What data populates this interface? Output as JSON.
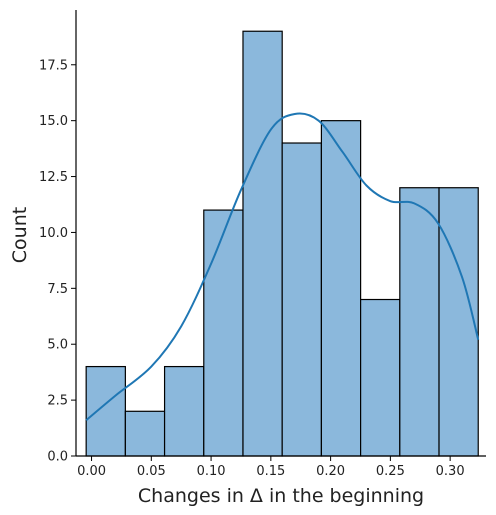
{
  "chart_data": {
    "type": "bar",
    "subtype": "histogram-with-kde",
    "xlabel": "Changes in Δ in the beginning",
    "ylabel": "Count",
    "xlim": [
      -0.013,
      0.33
    ],
    "ylim": [
      0,
      19.95
    ],
    "x_ticks": [
      0.0,
      0.05,
      0.1,
      0.15,
      0.2,
      0.25,
      0.3
    ],
    "x_tick_labels": [
      "0.00",
      "0.05",
      "0.10",
      "0.15",
      "0.20",
      "0.25",
      "0.30"
    ],
    "y_ticks": [
      0,
      2.5,
      5,
      7.5,
      10,
      12.5,
      15,
      17.5
    ],
    "y_tick_labels": [
      "0.0",
      "2.5",
      "5.0",
      "7.5",
      "10.0",
      "12.5",
      "15.0",
      "17.5"
    ],
    "bin_edges": [
      -0.0045,
      0.0283,
      0.0611,
      0.0939,
      0.1267,
      0.1595,
      0.1923,
      0.2251,
      0.2579,
      0.2907,
      0.3235
    ],
    "counts": [
      4,
      2,
      4,
      11,
      19,
      14,
      15,
      7,
      12,
      12
    ],
    "kde": {
      "x": [
        -0.0045,
        0.02,
        0.05,
        0.075,
        0.1,
        0.125,
        0.15,
        0.17,
        0.19,
        0.21,
        0.23,
        0.25,
        0.27,
        0.29,
        0.31,
        0.3235
      ],
      "y": [
        1.6,
        2.7,
        4.0,
        5.8,
        8.6,
        11.9,
        14.6,
        15.3,
        15.0,
        13.6,
        12.1,
        11.4,
        11.3,
        10.4,
        8.0,
        5.2
      ]
    },
    "colors": {
      "bar_fill": "#8bb8dc",
      "bar_edge": "#000000",
      "kde_line": "#1f77b4",
      "axis": "#000000"
    },
    "grid": false,
    "legend": "none"
  }
}
